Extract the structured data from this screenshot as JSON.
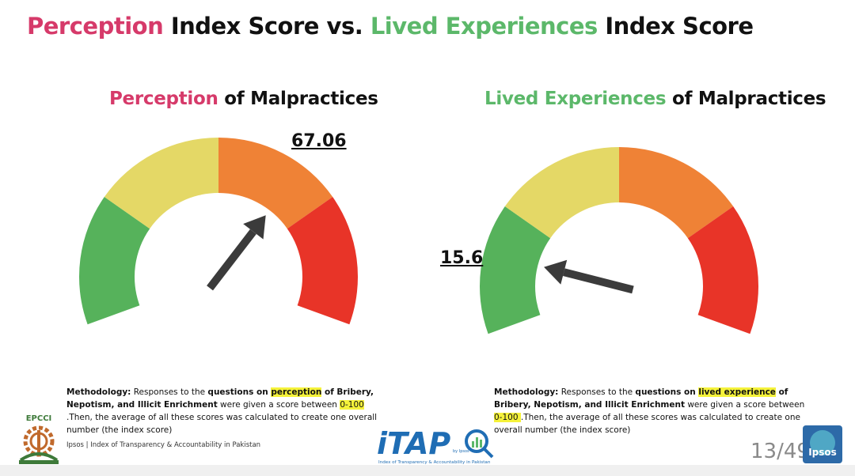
{
  "header": {
    "title_part1": "Perception",
    "title_part2": " Index Score vs. ",
    "title_part3": "Lived Experiences",
    "title_part4": " Index Score"
  },
  "colors": {
    "pink": "#d63a6a",
    "green_text": "#5cb86a",
    "gauge_green": "#56b25b",
    "gauge_yellow": "#e4d866",
    "gauge_orange": "#ef8236",
    "gauge_red": "#e83428",
    "needle": "#3b3b3b"
  },
  "chart_data": [
    {
      "type": "gauge",
      "title_highlight": "Perception",
      "title_rest": " of Malpractices",
      "value": 67.06,
      "value_label": "67.06",
      "range": [
        0,
        100
      ],
      "bands": [
        "green",
        "yellow",
        "orange",
        "red"
      ]
    },
    {
      "type": "gauge",
      "title_highlight": "Lived Experiences",
      "title_rest": " of Malpractices",
      "value": 15.6,
      "value_label": "15.6",
      "range": [
        0,
        100
      ],
      "bands": [
        "green",
        "yellow",
        "orange",
        "red"
      ]
    }
  ],
  "methodology_left": {
    "label": "Methodology:",
    "t1": " Responses to the ",
    "b1": "questions on ",
    "hl1": "perception",
    "b2": " of Bribery, Nepotism, and Illicit Enrichment",
    "t2": " were given a score between ",
    "hl2": "0-100 ",
    "t3": ".Then, the average of all these scores was calculated to create one overall number (the index score)"
  },
  "methodology_right": {
    "label": "Methodology:",
    "t1": " Responses to the ",
    "b1": "questions on ",
    "hl1": "lived experience",
    "b2": " of Bribery, Nepotism, and Illicit Enrichment",
    "t2": " were given a score between ",
    "hl2": "0-100 ",
    "t3": ".Then, the average of all these scores was calculated to create one overall number (the index score)"
  },
  "footer": {
    "source": "Ipsos | Index of Transparency & Accountability in Pakistan",
    "page": "13/49",
    "epcci_logo_text": "EPCCI",
    "itap_logo_text": "iTAP",
    "itap_by": "by Ipsos",
    "itap_sub": "Index of Transparency & Accountability in Pakistan",
    "ipsos_logo_text": "Ipsos"
  }
}
